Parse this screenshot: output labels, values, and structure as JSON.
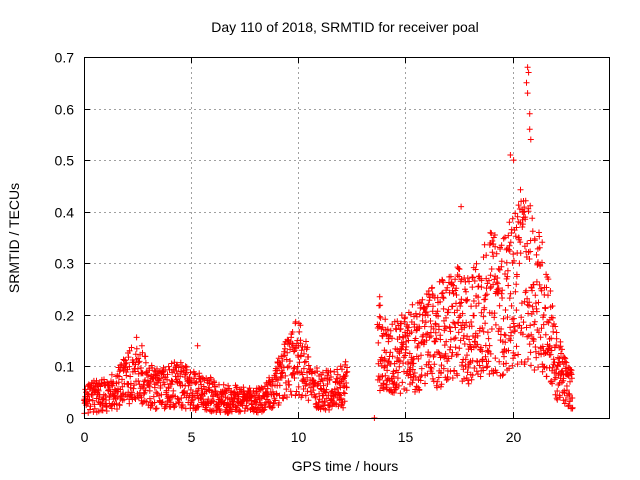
{
  "chart_data": {
    "type": "scatter",
    "title": "Day 110 of 2018, SRMTID for receiver poal",
    "xlabel": "GPS time / hours",
    "ylabel": "SRMTID / TECUs",
    "xlim": [
      0,
      24.5
    ],
    "ylim": [
      0,
      0.7
    ],
    "xticks": [
      0,
      5,
      10,
      15,
      20
    ],
    "yticks": [
      0,
      0.1,
      0.2,
      0.3,
      0.4,
      0.5,
      0.6,
      0.7
    ],
    "xtick_labels": [
      "0",
      "5",
      "10",
      "15",
      "20"
    ],
    "ytick_labels": [
      "0",
      "0.1",
      "0.2",
      "0.3",
      "0.4",
      "0.5",
      "0.6",
      "0.7"
    ],
    "grid": true,
    "marker": "+",
    "series": [
      {
        "name": "SRMTID",
        "color": "#ff0000",
        "profile": [
          [
            0.0,
            0.03
          ],
          [
            0.5,
            0.04
          ],
          [
            1.0,
            0.04
          ],
          [
            1.5,
            0.05
          ],
          [
            2.0,
            0.07
          ],
          [
            2.5,
            0.09
          ],
          [
            3.0,
            0.06
          ],
          [
            3.5,
            0.05
          ],
          [
            4.0,
            0.06
          ],
          [
            4.5,
            0.06
          ],
          [
            5.0,
            0.05
          ],
          [
            5.5,
            0.05
          ],
          [
            6.0,
            0.04
          ],
          [
            6.5,
            0.035
          ],
          [
            7.0,
            0.035
          ],
          [
            7.5,
            0.03
          ],
          [
            8.0,
            0.03
          ],
          [
            8.5,
            0.035
          ],
          [
            9.0,
            0.06
          ],
          [
            9.5,
            0.09
          ],
          [
            10.0,
            0.11
          ],
          [
            10.3,
            0.1
          ],
          [
            10.6,
            0.06
          ],
          [
            11.0,
            0.05
          ],
          [
            11.5,
            0.05
          ],
          [
            12.0,
            0.06
          ],
          [
            12.3,
            0.06
          ]
        ],
        "gap": [
          12.4,
          13.6
        ],
        "profile_after_gap": [
          [
            13.7,
            0.14
          ],
          [
            14.0,
            0.11
          ],
          [
            14.5,
            0.11
          ],
          [
            15.0,
            0.12
          ],
          [
            15.5,
            0.13
          ],
          [
            16.0,
            0.14
          ],
          [
            16.5,
            0.15
          ],
          [
            17.0,
            0.16
          ],
          [
            17.5,
            0.17
          ],
          [
            18.0,
            0.16
          ],
          [
            18.5,
            0.19
          ],
          [
            19.0,
            0.21
          ],
          [
            19.5,
            0.2
          ],
          [
            20.0,
            0.23
          ],
          [
            20.4,
            0.26
          ],
          [
            20.8,
            0.24
          ],
          [
            21.2,
            0.22
          ],
          [
            21.6,
            0.18
          ],
          [
            22.0,
            0.1
          ],
          [
            22.4,
            0.07
          ],
          [
            22.8,
            0.05
          ]
        ],
        "labeled_points": [
          {
            "x": 0.1,
            "y": 0.05
          },
          {
            "x": 2.7,
            "y": 0.14
          },
          {
            "x": 5.3,
            "y": 0.14
          },
          {
            "x": 10.1,
            "y": 0.18
          },
          {
            "x": 13.55,
            "y": 0.0
          },
          {
            "x": 13.8,
            "y": 0.235
          },
          {
            "x": 17.6,
            "y": 0.41
          },
          {
            "x": 19.9,
            "y": 0.51
          },
          {
            "x": 20.05,
            "y": 0.5
          },
          {
            "x": 20.7,
            "y": 0.68
          },
          {
            "x": 20.75,
            "y": 0.67
          },
          {
            "x": 20.65,
            "y": 0.65
          },
          {
            "x": 20.7,
            "y": 0.63
          },
          {
            "x": 20.8,
            "y": 0.59
          },
          {
            "x": 20.8,
            "y": 0.56
          },
          {
            "x": 20.85,
            "y": 0.54
          },
          {
            "x": 20.55,
            "y": 0.4
          },
          {
            "x": 20.4,
            "y": 0.42
          },
          {
            "x": 22.8,
            "y": 0.02
          }
        ]
      }
    ]
  }
}
